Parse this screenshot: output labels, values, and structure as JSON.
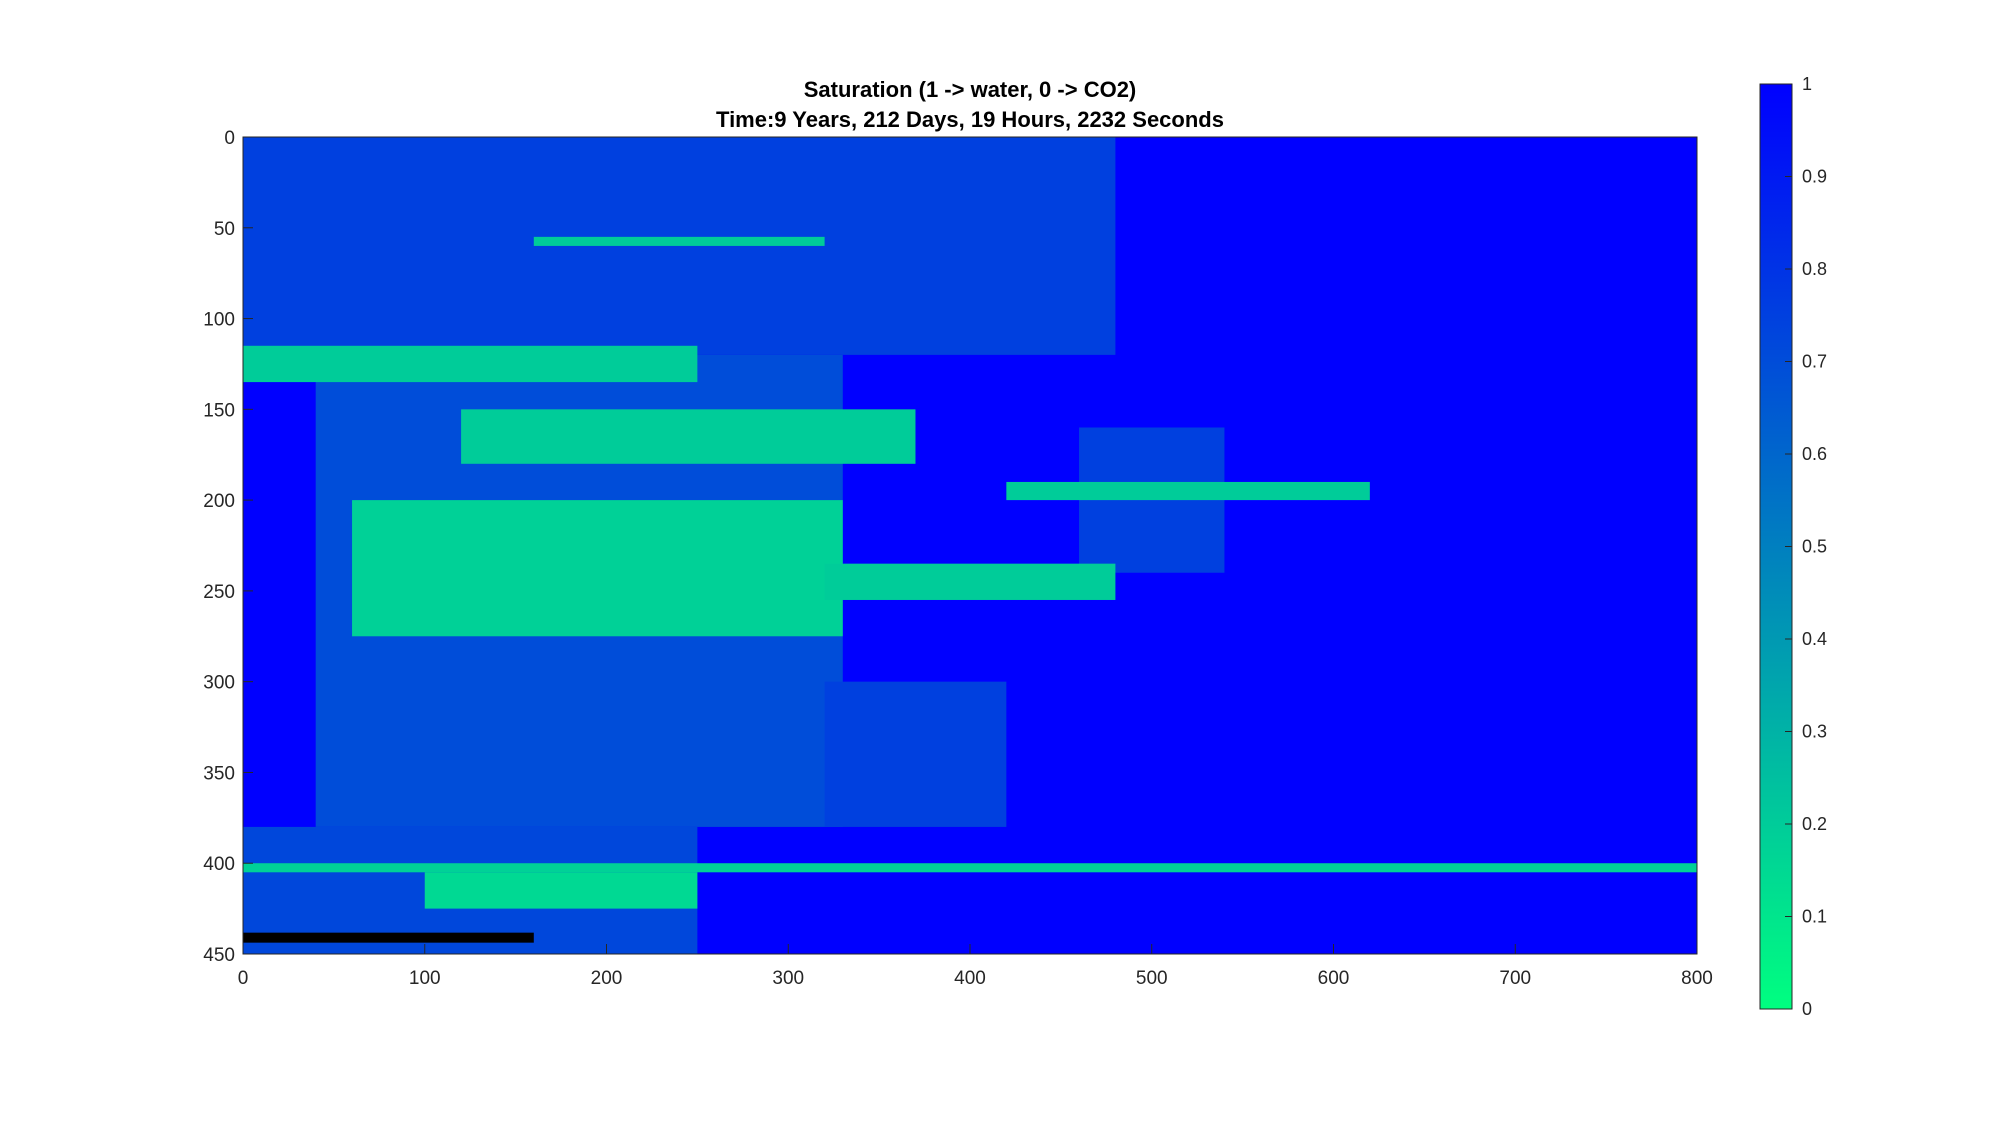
{
  "chart_data": {
    "type": "heatmap",
    "title": "Saturation (1 -> water, 0 -> CO2)",
    "subtitle": "Time:9 Years, 212 Days, 19 Hours, 2232 Seconds",
    "xlabel": "",
    "ylabel": "",
    "xlim": [
      0,
      800
    ],
    "ylim": [
      0,
      450
    ],
    "y_reversed": true,
    "xticks": [
      "0",
      "100",
      "200",
      "300",
      "400",
      "500",
      "600",
      "700",
      "800"
    ],
    "yticks": [
      "0",
      "50",
      "100",
      "150",
      "200",
      "250",
      "300",
      "350",
      "400",
      "450"
    ],
    "colorbar": {
      "range": [
        0,
        1
      ],
      "ticks": [
        "0",
        "0.1",
        "0.2",
        "0.3",
        "0.4",
        "0.5",
        "0.6",
        "0.7",
        "0.8",
        "0.9",
        "1"
      ],
      "color_low": "#00ff80",
      "color_high": "#0000ff"
    },
    "background_saturation": 1.0,
    "regions": [
      {
        "x": [
          0,
          480
        ],
        "y": [
          0,
          120
        ],
        "s": 0.75
      },
      {
        "x": [
          40,
          330
        ],
        "y": [
          120,
          380
        ],
        "s": 0.7
      },
      {
        "x": [
          320,
          420
        ],
        "y": [
          300,
          380
        ],
        "s": 0.75
      },
      {
        "x": [
          0,
          250
        ],
        "y": [
          380,
          450
        ],
        "s": 0.72
      },
      {
        "x": [
          460,
          540
        ],
        "y": [
          160,
          240
        ],
        "s": 0.75
      },
      {
        "x": [
          160,
          320
        ],
        "y": [
          55,
          60
        ],
        "s": 0.2
      },
      {
        "x": [
          0,
          250
        ],
        "y": [
          115,
          135
        ],
        "s": 0.2
      },
      {
        "x": [
          120,
          370
        ],
        "y": [
          150,
          180
        ],
        "s": 0.2
      },
      {
        "x": [
          60,
          330
        ],
        "y": [
          200,
          275
        ],
        "s": 0.18
      },
      {
        "x": [
          320,
          480
        ],
        "y": [
          235,
          255
        ],
        "s": 0.2
      },
      {
        "x": [
          420,
          620
        ],
        "y": [
          190,
          200
        ],
        "s": 0.2
      },
      {
        "x": [
          0,
          800
        ],
        "y": [
          400,
          405
        ],
        "s": 0.18
      },
      {
        "x": [
          100,
          250
        ],
        "y": [
          405,
          425
        ],
        "s": 0.15
      }
    ],
    "well_marker": {
      "x": [
        0,
        160
      ],
      "y": 441,
      "color": "#000000"
    }
  }
}
